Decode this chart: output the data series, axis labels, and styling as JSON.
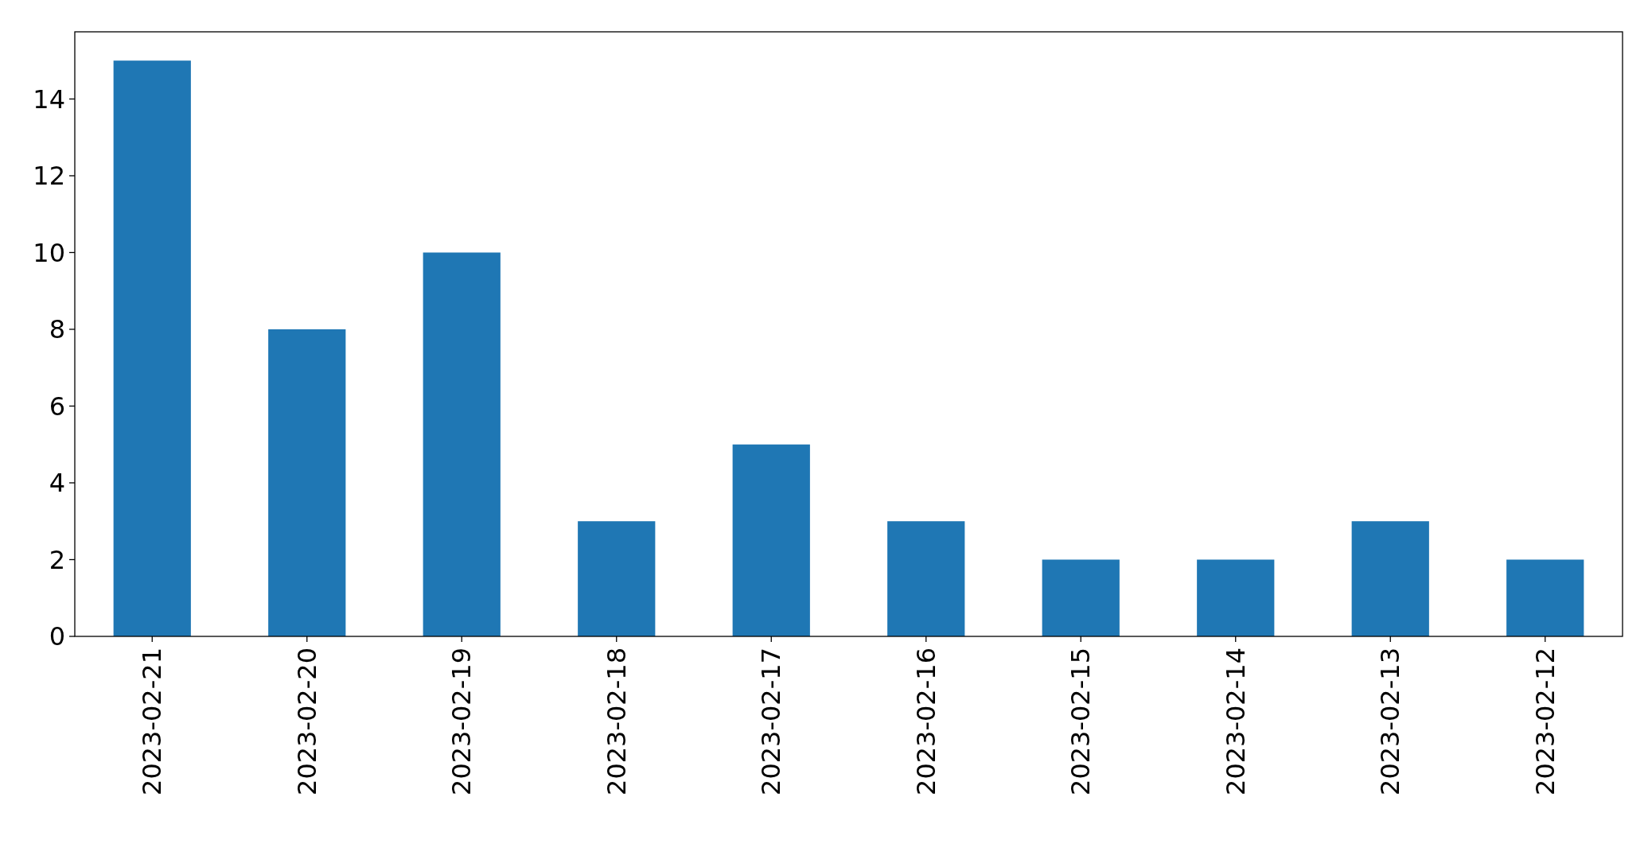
{
  "chart_data": {
    "type": "bar",
    "categories": [
      "2023-02-21",
      "2023-02-20",
      "2023-02-19",
      "2023-02-18",
      "2023-02-17",
      "2023-02-16",
      "2023-02-15",
      "2023-02-14",
      "2023-02-13",
      "2023-02-12"
    ],
    "values": [
      15,
      8,
      10,
      3,
      5,
      3,
      2,
      2,
      3,
      2
    ],
    "color": "#1f77b4",
    "ylim": [
      0,
      15.75
    ],
    "yticks": [
      0,
      2,
      4,
      6,
      8,
      10,
      12,
      14
    ],
    "grid": false
  }
}
